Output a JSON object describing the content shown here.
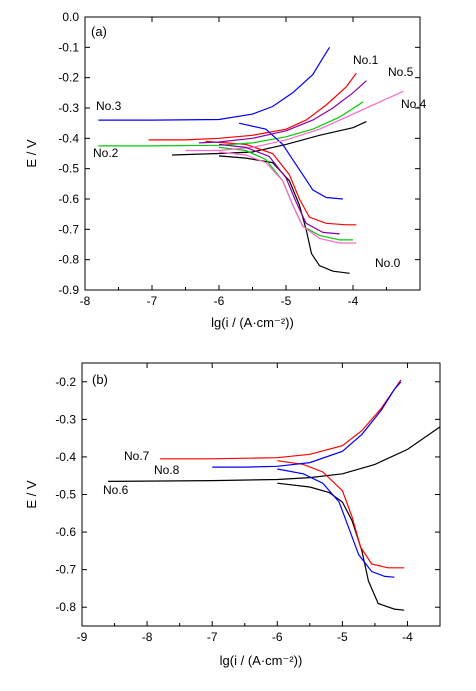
{
  "chart_data": [
    {
      "type": "line",
      "panel_label": "(a)",
      "xlabel": "lg(i / (A·cm⁻²))",
      "ylabel": "E / V",
      "xlim": [
        -8,
        -3
      ],
      "ylim": [
        -0.9,
        0.0
      ],
      "xticks": [
        -8,
        -7,
        -6,
        -5,
        -4
      ],
      "yticks": [
        0.0,
        -0.1,
        -0.2,
        -0.3,
        -0.4,
        -0.5,
        -0.6,
        -0.7,
        -0.8,
        -0.9
      ],
      "xtick_labels": [
        "-8",
        "-7",
        "-6",
        "-5",
        "-4"
      ],
      "ytick_labels": [
        "0.0",
        "-0.1",
        "-0.2",
        "-0.3",
        "-0.4",
        "-0.5",
        "-0.6",
        "-0.7",
        "-0.8",
        "-0.9"
      ],
      "grid": false,
      "series": [
        {
          "name": "No.0",
          "color": "#000000",
          "anodic": [
            [
              -6.7,
              -0.455
            ],
            [
              -6.0,
              -0.45
            ],
            [
              -5.5,
              -0.445
            ],
            [
              -5.0,
              -0.42
            ],
            [
              -4.5,
              -0.39
            ],
            [
              -4.0,
              -0.365
            ],
            [
              -3.8,
              -0.345
            ]
          ],
          "cathodic": [
            [
              -6.0,
              -0.458
            ],
            [
              -5.6,
              -0.465
            ],
            [
              -5.2,
              -0.48
            ],
            [
              -4.95,
              -0.54
            ],
            [
              -4.8,
              -0.62
            ],
            [
              -4.7,
              -0.7
            ],
            [
              -4.62,
              -0.78
            ],
            [
              -4.5,
              -0.82
            ],
            [
              -4.3,
              -0.838
            ],
            [
              -4.05,
              -0.845
            ]
          ]
        },
        {
          "name": "No.1",
          "color": "#ff0000",
          "anodic": [
            [
              -7.05,
              -0.405
            ],
            [
              -6.5,
              -0.405
            ],
            [
              -6.0,
              -0.4
            ],
            [
              -5.5,
              -0.39
            ],
            [
              -5.0,
              -0.37
            ],
            [
              -4.7,
              -0.34
            ],
            [
              -4.4,
              -0.29
            ],
            [
              -4.1,
              -0.23
            ],
            [
              -3.95,
              -0.185
            ]
          ],
          "cathodic": [
            [
              -6.2,
              -0.41
            ],
            [
              -5.6,
              -0.42
            ],
            [
              -5.2,
              -0.45
            ],
            [
              -4.95,
              -0.52
            ],
            [
              -4.8,
              -0.6
            ],
            [
              -4.65,
              -0.66
            ],
            [
              -4.4,
              -0.68
            ],
            [
              -4.1,
              -0.685
            ],
            [
              -3.95,
              -0.685
            ]
          ]
        },
        {
          "name": "No.2",
          "color": "#00cc00",
          "anodic": [
            [
              -7.8,
              -0.425
            ],
            [
              -7.0,
              -0.425
            ],
            [
              -6.0,
              -0.423
            ],
            [
              -5.5,
              -0.415
            ],
            [
              -5.0,
              -0.395
            ],
            [
              -4.6,
              -0.37
            ],
            [
              -4.2,
              -0.33
            ],
            [
              -3.85,
              -0.28
            ]
          ],
          "cathodic": [
            [
              -6.0,
              -0.43
            ],
            [
              -5.6,
              -0.44
            ],
            [
              -5.3,
              -0.47
            ],
            [
              -5.05,
              -0.54
            ],
            [
              -4.9,
              -0.62
            ],
            [
              -4.75,
              -0.69
            ],
            [
              -4.5,
              -0.72
            ],
            [
              -4.2,
              -0.735
            ],
            [
              -4.0,
              -0.735
            ]
          ]
        },
        {
          "name": "No.3",
          "color": "#0000ff",
          "anodic": [
            [
              -7.8,
              -0.34
            ],
            [
              -7.0,
              -0.34
            ],
            [
              -6.0,
              -0.338
            ],
            [
              -5.5,
              -0.32
            ],
            [
              -5.2,
              -0.295
            ],
            [
              -4.9,
              -0.25
            ],
            [
              -4.6,
              -0.19
            ],
            [
              -4.45,
              -0.135
            ],
            [
              -4.35,
              -0.1
            ]
          ],
          "cathodic": [
            [
              -5.7,
              -0.35
            ],
            [
              -5.3,
              -0.37
            ],
            [
              -5.05,
              -0.42
            ],
            [
              -4.9,
              -0.47
            ],
            [
              -4.75,
              -0.52
            ],
            [
              -4.6,
              -0.57
            ],
            [
              -4.4,
              -0.595
            ],
            [
              -4.15,
              -0.6
            ]
          ]
        },
        {
          "name": "No.4",
          "color": "#ff66cc",
          "anodic": [
            [
              -6.5,
              -0.44
            ],
            [
              -6.0,
              -0.44
            ],
            [
              -5.5,
              -0.43
            ],
            [
              -5.0,
              -0.405
            ],
            [
              -4.5,
              -0.37
            ],
            [
              -4.0,
              -0.32
            ],
            [
              -3.6,
              -0.28
            ],
            [
              -3.25,
              -0.245
            ]
          ],
          "cathodic": [
            [
              -6.0,
              -0.445
            ],
            [
              -5.6,
              -0.455
            ],
            [
              -5.3,
              -0.48
            ],
            [
              -5.05,
              -0.54
            ],
            [
              -4.9,
              -0.62
            ],
            [
              -4.75,
              -0.69
            ],
            [
              -4.5,
              -0.73
            ],
            [
              -4.2,
              -0.745
            ],
            [
              -3.95,
              -0.745
            ]
          ]
        },
        {
          "name": "No.5",
          "color": "#8800aa",
          "anodic": [
            [
              -6.3,
              -0.415
            ],
            [
              -6.0,
              -0.412
            ],
            [
              -5.5,
              -0.4
            ],
            [
              -5.0,
              -0.375
            ],
            [
              -4.6,
              -0.34
            ],
            [
              -4.3,
              -0.3
            ],
            [
              -4.0,
              -0.25
            ],
            [
              -3.8,
              -0.21
            ]
          ],
          "cathodic": [
            [
              -6.0,
              -0.42
            ],
            [
              -5.6,
              -0.43
            ],
            [
              -5.25,
              -0.46
            ],
            [
              -5.0,
              -0.53
            ],
            [
              -4.85,
              -0.61
            ],
            [
              -4.7,
              -0.68
            ],
            [
              -4.45,
              -0.71
            ],
            [
              -4.2,
              -0.715
            ]
          ]
        }
      ]
    },
    {
      "type": "line",
      "panel_label": "(b)",
      "xlabel": "lg(i / (A·cm⁻²))",
      "ylabel": "E / V",
      "xlim": [
        -9,
        -3.5
      ],
      "ylim": [
        -0.85,
        -0.15
      ],
      "xticks": [
        -9,
        -8,
        -7,
        -6,
        -5,
        -4
      ],
      "yticks": [
        -0.2,
        -0.3,
        -0.4,
        -0.5,
        -0.6,
        -0.7,
        -0.8
      ],
      "xtick_labels": [
        "-9",
        "-8",
        "-7",
        "-6",
        "-5",
        "-4"
      ],
      "ytick_labels": [
        "-0.2",
        "-0.3",
        "-0.4",
        "-0.5",
        "-0.6",
        "-0.7",
        "-0.8"
      ],
      "grid": false,
      "series": [
        {
          "name": "No.6",
          "color": "#000000",
          "anodic": [
            [
              -8.6,
              -0.465
            ],
            [
              -7.0,
              -0.463
            ],
            [
              -6.0,
              -0.46
            ],
            [
              -5.5,
              -0.455
            ],
            [
              -5.0,
              -0.445
            ],
            [
              -4.5,
              -0.42
            ],
            [
              -4.0,
              -0.38
            ],
            [
              -3.5,
              -0.32
            ]
          ],
          "cathodic": [
            [
              -6.0,
              -0.47
            ],
            [
              -5.5,
              -0.48
            ],
            [
              -5.2,
              -0.495
            ],
            [
              -5.0,
              -0.52
            ],
            [
              -4.85,
              -0.57
            ],
            [
              -4.7,
              -0.65
            ],
            [
              -4.6,
              -0.73
            ],
            [
              -4.45,
              -0.79
            ],
            [
              -4.2,
              -0.805
            ],
            [
              -4.05,
              -0.808
            ]
          ]
        },
        {
          "name": "No.7",
          "color": "#ff0000",
          "anodic": [
            [
              -7.8,
              -0.405
            ],
            [
              -7.0,
              -0.405
            ],
            [
              -6.0,
              -0.402
            ],
            [
              -5.5,
              -0.393
            ],
            [
              -5.0,
              -0.37
            ],
            [
              -4.7,
              -0.33
            ],
            [
              -4.4,
              -0.27
            ],
            [
              -4.2,
              -0.22
            ],
            [
              -4.1,
              -0.195
            ]
          ],
          "cathodic": [
            [
              -6.0,
              -0.41
            ],
            [
              -5.6,
              -0.42
            ],
            [
              -5.3,
              -0.44
            ],
            [
              -5.0,
              -0.49
            ],
            [
              -4.85,
              -0.56
            ],
            [
              -4.72,
              -0.64
            ],
            [
              -4.55,
              -0.685
            ],
            [
              -4.3,
              -0.695
            ],
            [
              -4.05,
              -0.695
            ]
          ]
        },
        {
          "name": "No.8",
          "color": "#0000ff",
          "anodic": [
            [
              -7.0,
              -0.427
            ],
            [
              -6.5,
              -0.427
            ],
            [
              -6.0,
              -0.425
            ],
            [
              -5.5,
              -0.415
            ],
            [
              -5.0,
              -0.385
            ],
            [
              -4.7,
              -0.34
            ],
            [
              -4.4,
              -0.275
            ],
            [
              -4.2,
              -0.22
            ],
            [
              -4.1,
              -0.2
            ]
          ],
          "cathodic": [
            [
              -6.0,
              -0.432
            ],
            [
              -5.6,
              -0.445
            ],
            [
              -5.3,
              -0.47
            ],
            [
              -5.05,
              -0.52
            ],
            [
              -4.9,
              -0.59
            ],
            [
              -4.75,
              -0.66
            ],
            [
              -4.55,
              -0.705
            ],
            [
              -4.35,
              -0.718
            ],
            [
              -4.2,
              -0.72
            ]
          ]
        }
      ]
    }
  ]
}
